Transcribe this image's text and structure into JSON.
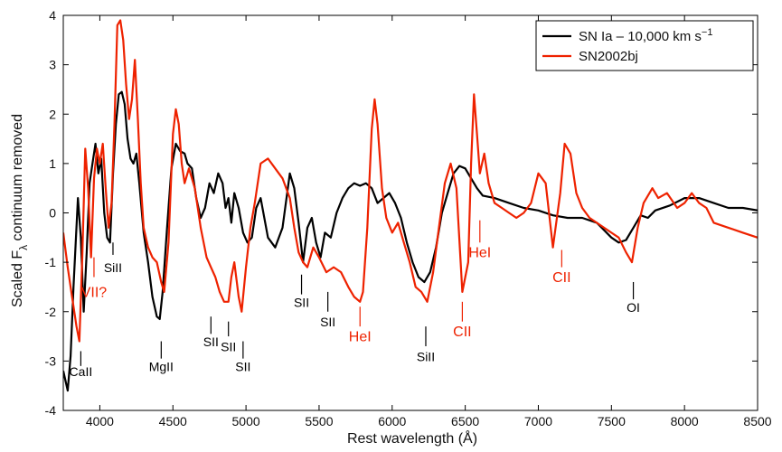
{
  "chart_data": {
    "type": "line",
    "title": "",
    "xlabel": "Rest wavelength (Å)",
    "ylabel": "Scaled F",
    "ylabel_sub": "λ",
    "ylabel_suffix": " continuum removed",
    "xlim": [
      3750,
      8500
    ],
    "ylim": [
      -4,
      4
    ],
    "xticks": [
      4000,
      4500,
      5000,
      5500,
      6000,
      6500,
      7000,
      7500,
      8000,
      8500
    ],
    "yticks": [
      -4,
      -3,
      -2,
      -1,
      0,
      1,
      2,
      3,
      4
    ],
    "grid": false,
    "legend_position": "top-right",
    "series": [
      {
        "name": "SN Ia – 10,000 km s",
        "name_sup": "−1",
        "color": "#000000",
        "x": [
          3750,
          3780,
          3800,
          3820,
          3850,
          3870,
          3890,
          3910,
          3930,
          3950,
          3970,
          3990,
          4010,
          4030,
          4050,
          4070,
          4090,
          4110,
          4130,
          4150,
          4170,
          4190,
          4210,
          4230,
          4250,
          4270,
          4300,
          4330,
          4360,
          4390,
          4410,
          4430,
          4460,
          4490,
          4520,
          4550,
          4580,
          4600,
          4630,
          4660,
          4690,
          4720,
          4750,
          4780,
          4810,
          4840,
          4860,
          4880,
          4900,
          4920,
          4950,
          4980,
          5010,
          5040,
          5070,
          5100,
          5150,
          5200,
          5250,
          5300,
          5330,
          5360,
          5390,
          5420,
          5450,
          5480,
          5510,
          5540,
          5580,
          5620,
          5660,
          5700,
          5740,
          5780,
          5820,
          5860,
          5900,
          5940,
          5980,
          6020,
          6060,
          6100,
          6140,
          6180,
          6220,
          6260,
          6300,
          6340,
          6380,
          6420,
          6460,
          6500,
          6540,
          6580,
          6620,
          6700,
          6800,
          6900,
          7000,
          7100,
          7200,
          7300,
          7400,
          7500,
          7550,
          7600,
          7650,
          7700,
          7750,
          7800,
          7900,
          8000,
          8100,
          8200,
          8300,
          8400,
          8500
        ],
        "y": [
          -3.2,
          -3.6,
          -2.9,
          -1.5,
          0.3,
          -0.5,
          -2.0,
          -0.8,
          0.6,
          1.0,
          1.4,
          0.8,
          1.1,
          0.0,
          -0.5,
          -0.6,
          0.8,
          1.8,
          2.4,
          2.45,
          2.2,
          1.5,
          1.1,
          1.0,
          1.2,
          0.6,
          -0.4,
          -1.0,
          -1.7,
          -2.1,
          -2.15,
          -1.6,
          -0.3,
          0.9,
          1.4,
          1.25,
          1.2,
          1.0,
          0.9,
          0.3,
          -0.1,
          0.1,
          0.6,
          0.4,
          0.8,
          0.6,
          0.1,
          0.3,
          -0.2,
          0.4,
          0.1,
          -0.4,
          -0.6,
          -0.5,
          0.1,
          0.3,
          -0.5,
          -0.7,
          -0.3,
          0.8,
          0.5,
          -0.2,
          -1.0,
          -0.3,
          -0.1,
          -0.6,
          -0.9,
          -0.4,
          -0.5,
          0.0,
          0.3,
          0.5,
          0.6,
          0.55,
          0.6,
          0.5,
          0.2,
          0.3,
          0.4,
          0.2,
          -0.1,
          -0.6,
          -1.0,
          -1.3,
          -1.4,
          -1.2,
          -0.7,
          0.0,
          0.4,
          0.8,
          0.95,
          0.9,
          0.7,
          0.5,
          0.35,
          0.3,
          0.2,
          0.1,
          0.05,
          -0.05,
          -0.1,
          -0.1,
          -0.2,
          -0.5,
          -0.6,
          -0.55,
          -0.3,
          -0.05,
          -0.1,
          0.05,
          0.15,
          0.3,
          0.3,
          0.2,
          0.1,
          0.1,
          0.05
        ]
      },
      {
        "name": "SN2002bj",
        "color": "#ee2200",
        "x": [
          3750,
          3780,
          3810,
          3840,
          3860,
          3880,
          3900,
          3920,
          3940,
          3960,
          3980,
          4000,
          4020,
          4040,
          4060,
          4080,
          4100,
          4120,
          4140,
          4160,
          4180,
          4200,
          4220,
          4240,
          4260,
          4280,
          4300,
          4330,
          4360,
          4390,
          4420,
          4440,
          4470,
          4500,
          4520,
          4540,
          4560,
          4580,
          4610,
          4650,
          4690,
          4730,
          4760,
          4790,
          4820,
          4850,
          4880,
          4900,
          4920,
          4950,
          4970,
          5000,
          5030,
          5060,
          5100,
          5150,
          5200,
          5250,
          5300,
          5330,
          5360,
          5390,
          5420,
          5460,
          5500,
          5550,
          5600,
          5650,
          5700,
          5740,
          5780,
          5800,
          5830,
          5860,
          5880,
          5900,
          5930,
          5960,
          6000,
          6040,
          6080,
          6120,
          6160,
          6200,
          6240,
          6280,
          6320,
          6360,
          6400,
          6440,
          6480,
          6520,
          6540,
          6560,
          6580,
          6600,
          6630,
          6660,
          6700,
          6750,
          6800,
          6850,
          6900,
          6950,
          7000,
          7050,
          7100,
          7150,
          7180,
          7220,
          7260,
          7300,
          7350,
          7400,
          7450,
          7500,
          7550,
          7600,
          7640,
          7680,
          7720,
          7780,
          7820,
          7880,
          7950,
          8000,
          8050,
          8100,
          8150,
          8200,
          8300,
          8400,
          8500
        ],
        "y": [
          -0.4,
          -1.1,
          -1.7,
          -2.3,
          -2.6,
          -0.9,
          1.3,
          0.5,
          -0.9,
          0.7,
          1.3,
          1.0,
          1.4,
          0.5,
          -0.3,
          0.2,
          1.8,
          3.8,
          3.9,
          3.5,
          2.6,
          1.9,
          2.3,
          3.1,
          1.9,
          0.6,
          -0.3,
          -0.7,
          -0.9,
          -1.0,
          -1.4,
          -1.6,
          -0.6,
          1.6,
          2.1,
          1.8,
          1.0,
          0.6,
          0.9,
          0.5,
          -0.3,
          -0.9,
          -1.1,
          -1.3,
          -1.6,
          -1.8,
          -1.8,
          -1.3,
          -1.0,
          -1.7,
          -2.0,
          -1.1,
          -0.3,
          0.2,
          1.0,
          1.1,
          0.9,
          0.7,
          0.3,
          -0.3,
          -0.8,
          -1.0,
          -1.1,
          -0.7,
          -0.9,
          -1.2,
          -1.1,
          -1.2,
          -1.5,
          -1.7,
          -1.8,
          -1.6,
          -0.3,
          1.7,
          2.3,
          1.8,
          0.5,
          -0.1,
          -0.4,
          -0.2,
          -0.6,
          -1.0,
          -1.5,
          -1.6,
          -1.8,
          -1.2,
          -0.3,
          0.6,
          1.0,
          0.5,
          -1.6,
          -1.0,
          1.0,
          2.4,
          1.6,
          0.8,
          1.2,
          0.6,
          0.2,
          0.1,
          0.0,
          -0.1,
          0.0,
          0.2,
          0.8,
          0.6,
          -0.7,
          0.4,
          1.4,
          1.2,
          0.4,
          0.1,
          -0.1,
          -0.2,
          -0.3,
          -0.4,
          -0.5,
          -0.8,
          -1.0,
          -0.3,
          0.2,
          0.5,
          0.3,
          0.4,
          0.1,
          0.2,
          0.4,
          0.2,
          0.1,
          -0.2,
          -0.3,
          -0.4,
          -0.5
        ]
      }
    ],
    "annotations": [
      {
        "text": "CaII",
        "x": 3870,
        "y": -3.3,
        "tick_from": -2.8,
        "tick_to": -3.1,
        "color": "black"
      },
      {
        "text": "VII?",
        "x": 3960,
        "y": -1.7,
        "tick_from": -0.9,
        "tick_to": -1.3,
        "color": "red"
      },
      {
        "text": "SiII",
        "x": 4090,
        "y": -1.2,
        "tick_from": -0.6,
        "tick_to": -0.85,
        "color": "black"
      },
      {
        "text": "MgII",
        "x": 4420,
        "y": -3.2,
        "tick_from": -2.6,
        "tick_to": -2.95,
        "color": "black"
      },
      {
        "text": "SII",
        "x": 4760,
        "y": -2.7,
        "tick_from": -2.1,
        "tick_to": -2.45,
        "color": "black"
      },
      {
        "text": "SII",
        "x": 4880,
        "y": -2.8,
        "tick_from": -2.2,
        "tick_to": -2.5,
        "color": "black"
      },
      {
        "text": "SII",
        "x": 4980,
        "y": -3.2,
        "tick_from": -2.6,
        "tick_to": -2.95,
        "color": "black"
      },
      {
        "text": "SII",
        "x": 5380,
        "y": -1.9,
        "tick_from": -1.25,
        "tick_to": -1.65,
        "color": "black"
      },
      {
        "text": "SII",
        "x": 5560,
        "y": -2.3,
        "tick_from": -1.6,
        "tick_to": -2.0,
        "color": "black"
      },
      {
        "text": "HeI",
        "x": 5780,
        "y": -2.6,
        "tick_from": -1.9,
        "tick_to": -2.3,
        "color": "red"
      },
      {
        "text": "SiII",
        "x": 6230,
        "y": -3.0,
        "tick_from": -2.3,
        "tick_to": -2.7,
        "color": "black"
      },
      {
        "text": "CII",
        "x": 6480,
        "y": -2.5,
        "tick_from": -1.8,
        "tick_to": -2.2,
        "color": "red"
      },
      {
        "text": "HeI",
        "x": 6600,
        "y": -0.9,
        "tick_from": -0.15,
        "tick_to": -0.6,
        "color": "red"
      },
      {
        "text": "CII",
        "x": 7160,
        "y": -1.4,
        "tick_from": -0.75,
        "tick_to": -1.1,
        "color": "red"
      },
      {
        "text": "OI",
        "x": 7650,
        "y": -2.0,
        "tick_from": -1.4,
        "tick_to": -1.75,
        "color": "black"
      }
    ]
  }
}
